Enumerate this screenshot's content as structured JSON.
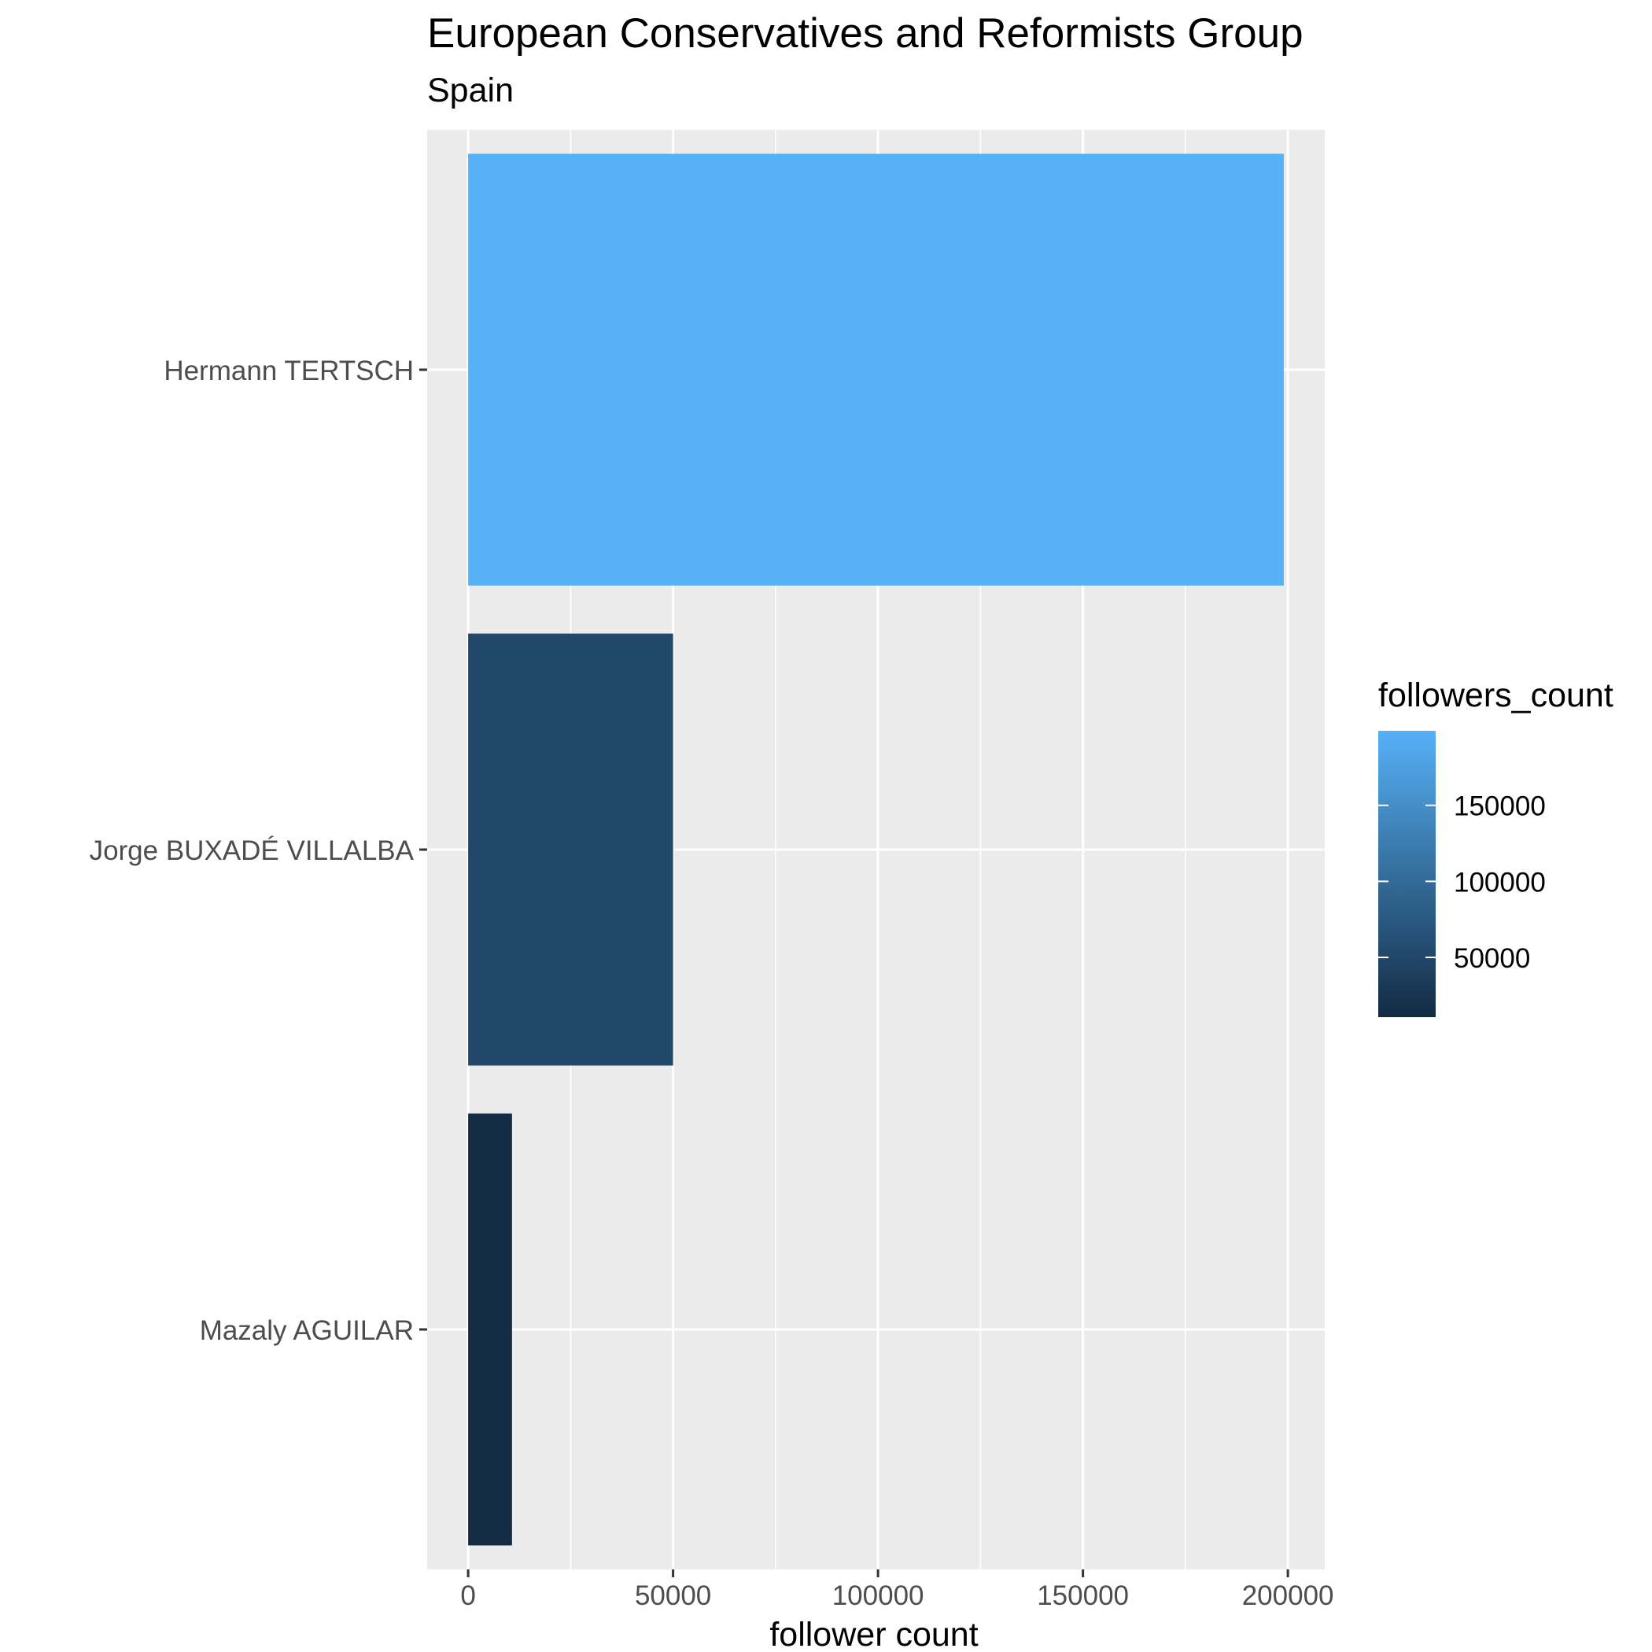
{
  "chart_data": {
    "type": "bar",
    "orientation": "horizontal",
    "title": "European Conservatives and Reformists Group",
    "subtitle": "Spain",
    "xlabel": "follower count",
    "ylabel": "",
    "categories": [
      "Hermann TERTSCH",
      "Jorge BUXADÉ VILLALBA",
      "Mazaly AGUILAR"
    ],
    "values": [
      199000,
      50000,
      10700
    ],
    "xlim": [
      -10000,
      209000
    ],
    "xticks": [
      0,
      50000,
      100000,
      150000,
      200000
    ],
    "xtick_labels": [
      "0",
      "50000",
      "100000",
      "150000",
      "200000"
    ],
    "grid": true,
    "legend": {
      "title": "followers_count",
      "type": "colorbar",
      "placement": "right",
      "range": [
        10700,
        199000
      ],
      "ticks": [
        50000,
        100000,
        150000
      ],
      "tick_labels": [
        "50000",
        "100000",
        "150000"
      ],
      "low_color": "#132B43",
      "high_color": "#56B1F7"
    },
    "colors": {
      "panel_background": "#EBEBEB",
      "grid_line": "#FFFFFF",
      "axis_text": "#4D4D4D",
      "title_text": "#000000"
    }
  }
}
